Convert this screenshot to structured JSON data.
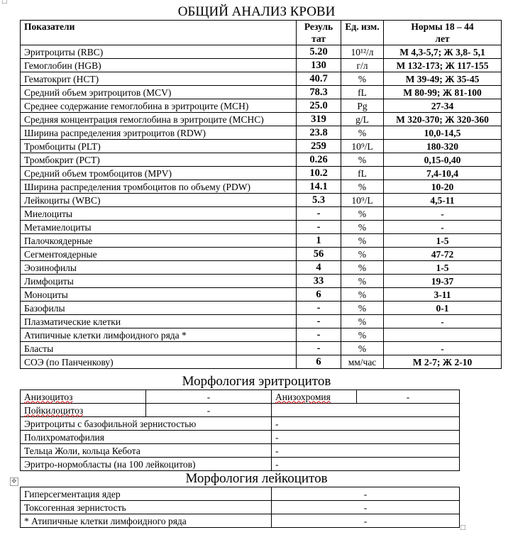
{
  "title": "ОБЩИЙ АНАЛИЗ КРОВИ",
  "headers": {
    "name": "Показатели",
    "result": "Резуль тат",
    "unit": "Ед. изм.",
    "norms": "Нормы 18 – 44 лет"
  },
  "rows": [
    {
      "name": "Эритроциты  (RBC)",
      "result": "5.20",
      "unit": "10¹²/л",
      "norm": "М 4,3-5,7; Ж 3,8- 5,1"
    },
    {
      "name": "Гемоглобин   (HGB)",
      "result": "130",
      "unit": "г/л",
      "norm": "М 132-173; Ж 117-155"
    },
    {
      "name": "Гематокрит   (HCT)",
      "result": "40.7",
      "unit": "%",
      "norm": "М 39-49; Ж 35-45"
    },
    {
      "name": "Средний объем эритроцитов (MCV)",
      "result": "78.3",
      "unit": "fL",
      "norm": "М 80-99; Ж 81-100"
    },
    {
      "name": "Среднее содержание гемоглобина в эритроците (MCH)",
      "result": "25.0",
      "unit": "Pg",
      "norm": "27-34"
    },
    {
      "name": "Средняя концентрация гемоглобина в эритроците (MCHC)",
      "result": "319",
      "unit": "g/L",
      "norm": "М 320-370; Ж 320-360"
    },
    {
      "name": "Ширина распределения эритроцитов  (RDW)",
      "result": "23.8",
      "unit": "%",
      "norm": "10,0-14,5"
    },
    {
      "name": "Тромбоциты  (PLT)",
      "result": "259",
      "unit": "10⁹/L",
      "norm": "180-320"
    },
    {
      "name": "Тромбокрит  (PCT)",
      "result": "0.26",
      "unit": "%",
      "norm": "0,15-0,40"
    },
    {
      "name": "Средний объем тромбоцитов (MPV)",
      "result": "10.2",
      "unit": "fL",
      "norm": "7,4-10,4"
    },
    {
      "name": "Ширина распределения тромбоцитов по объему (PDW)",
      "result": "14.1",
      "unit": "%",
      "norm": "10-20"
    },
    {
      "name": "Лейкоциты  (WBC)",
      "result": "5.3",
      "unit": "10⁹/L",
      "norm": "4,5-11"
    },
    {
      "name": "Миелоциты",
      "result": "-",
      "unit": "%",
      "norm": "-"
    },
    {
      "name": "Метамиелоциты",
      "result": "-",
      "unit": "%",
      "norm": "-"
    },
    {
      "name": "Палочкоядерные",
      "result": "1",
      "unit": "%",
      "norm": "1-5"
    },
    {
      "name": "Сегментоядерные",
      "result": "56",
      "unit": "%",
      "norm": "47-72"
    },
    {
      "name": "Эозинофилы",
      "result": "4",
      "unit": "%",
      "norm": "1-5"
    },
    {
      "name": "Лимфоциты",
      "result": "33",
      "unit": "%",
      "norm": "19-37"
    },
    {
      "name": "Моноциты",
      "result": "6",
      "unit": "%",
      "norm": "3-11"
    },
    {
      "name": "Базофилы",
      "result": "-",
      "unit": "%",
      "norm": "0-1"
    },
    {
      "name": "Плазматические клетки",
      "result": "-",
      "unit": "%",
      "norm": "-"
    },
    {
      "name": "Атипичные клетки лимфоидного ряда *",
      "result": "-",
      "unit": "%",
      "norm": ""
    },
    {
      "name": "Бласты",
      "result": "-",
      "unit": "%",
      "norm": "-"
    },
    {
      "name": "СОЭ (по Панченкову)",
      "result": "6",
      "unit": "мм/час",
      "norm": "М 2-7; Ж 2-10"
    }
  ],
  "erythro_morph": {
    "title": "Морфология эритроцитов",
    "anisocytosis": {
      "label": "Анизоцитоз",
      "value": "-"
    },
    "anisochromia": {
      "label": "Анизохромия",
      "value": "-"
    },
    "poikilocytosis": {
      "label": "Пойкилоцитоз",
      "value": "-"
    },
    "rows": [
      {
        "label": "Эритроциты с базофильной зернистостью",
        "value": "-"
      },
      {
        "label": "Полихроматофилия",
        "value": "-"
      },
      {
        "label": "Тельца Жоли, кольца Кебота",
        "value": "-"
      },
      {
        "label": "Эритро-нормобласты (на 100 лейкоцитов)",
        "value": "-"
      }
    ]
  },
  "leuko_morph": {
    "title": "Морфология лейкоцитов",
    "rows": [
      {
        "label": "Гиперсегментация ядер",
        "value": "-"
      },
      {
        "label": "Токсогенная зернистость",
        "value": "-"
      },
      {
        "label": "*  Атипичные клетки лимфоидного ряда",
        "value": "-"
      }
    ]
  }
}
